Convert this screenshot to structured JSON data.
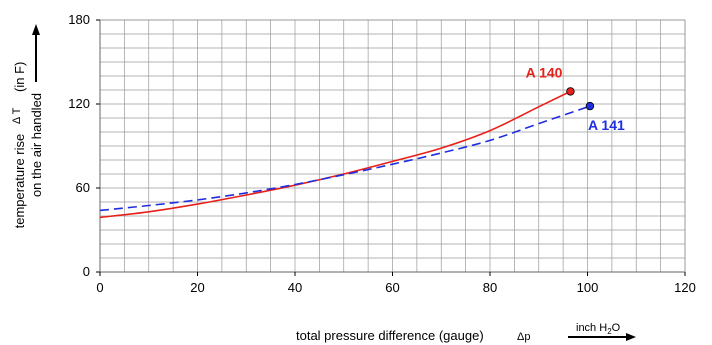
{
  "chart_data": {
    "type": "line",
    "xlabel": "total pressure difference (gauge)",
    "xlabel_symbol": "Δp",
    "x_unit_prefix": "inch H",
    "x_unit_sub": "2",
    "x_unit_suffix": "O",
    "ylabel_line1": "temperature rise",
    "ylabel_symbol": "Δ T",
    "ylabel_unit": "(in F)",
    "ylabel_line2": "on the air handled",
    "xlim": [
      0,
      120
    ],
    "ylim": [
      0,
      180
    ],
    "x_ticks": [
      "0",
      "20",
      "40",
      "60",
      "80",
      "100",
      "120"
    ],
    "y_ticks": [
      "0",
      "60",
      "120",
      "180"
    ],
    "grid": true,
    "series": [
      {
        "name": "A 140",
        "color": "#e8201a",
        "style": "solid",
        "marker_at_end": true,
        "points": [
          [
            0,
            39
          ],
          [
            10,
            43
          ],
          [
            20,
            48.5
          ],
          [
            30,
            55
          ],
          [
            40,
            62
          ],
          [
            50,
            70
          ],
          [
            60,
            79
          ],
          [
            70,
            88.5
          ],
          [
            80,
            101
          ],
          [
            90,
            118
          ],
          [
            96.5,
            129
          ]
        ]
      },
      {
        "name": "A 141",
        "color": "#1f2ee0",
        "style": "dashed",
        "marker_at_end": true,
        "points": [
          [
            0,
            44
          ],
          [
            10,
            47.5
          ],
          [
            20,
            51.5
          ],
          [
            30,
            56.5
          ],
          [
            40,
            62.5
          ],
          [
            50,
            69.5
          ],
          [
            60,
            77
          ],
          [
            70,
            85
          ],
          [
            80,
            94
          ],
          [
            90,
            106
          ],
          [
            100.5,
            118.5
          ]
        ]
      }
    ]
  }
}
